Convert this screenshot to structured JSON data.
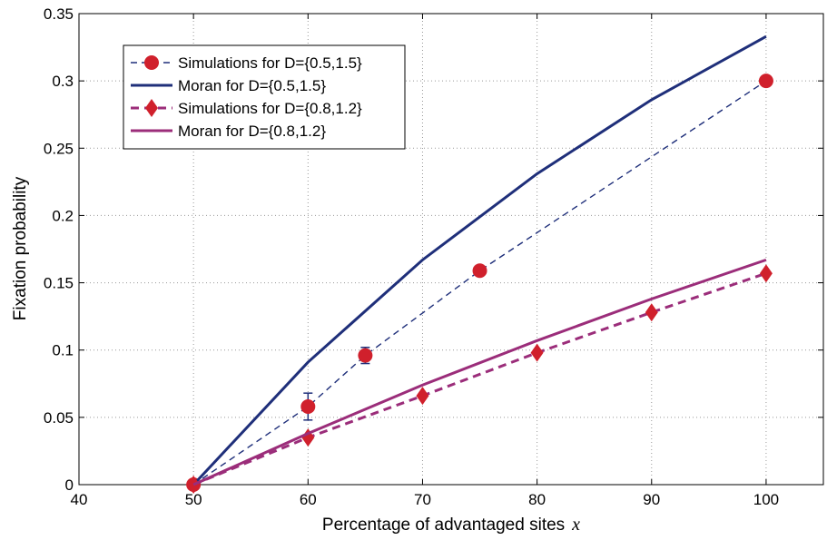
{
  "chart_data": {
    "type": "line",
    "xlabel": "Percentage of advantaged sites",
    "xlabel_var": "x",
    "ylabel": "Fixation probability",
    "xlim": [
      40,
      105
    ],
    "ylim": [
      0,
      0.35
    ],
    "xticks": [
      40,
      50,
      60,
      70,
      80,
      90,
      100
    ],
    "yticks": [
      0,
      0.05,
      0.1,
      0.15,
      0.2,
      0.25,
      0.3,
      0.35
    ],
    "grid": true,
    "legend_position": "top-left",
    "series": [
      {
        "name": "Simulations for D={0.5,1.5}",
        "style": "dashed-thin-circle",
        "line_color": "#1f2f7a",
        "marker_color": "#d0202c",
        "x": [
          50,
          60,
          65,
          75,
          100
        ],
        "y": [
          0.0,
          0.058,
          0.096,
          0.159,
          0.3
        ],
        "err": [
          0.0,
          0.01,
          0.006,
          0.0,
          0.0
        ]
      },
      {
        "name": "Moran for D={0.5,1.5}",
        "style": "solid",
        "line_color": "#1f2f7a",
        "x": [
          50,
          60,
          70,
          80,
          90,
          100
        ],
        "y": [
          0.0,
          0.091,
          0.167,
          0.231,
          0.286,
          0.333
        ]
      },
      {
        "name": "Simulations for D={0.8,1.2}",
        "style": "dashed-thick-diamond",
        "line_color": "#9b2d7a",
        "marker_color": "#d0202c",
        "x": [
          50,
          60,
          70,
          80,
          90,
          100
        ],
        "y": [
          0.0,
          0.035,
          0.066,
          0.098,
          0.128,
          0.157
        ],
        "err": [
          0.0,
          0.0,
          0.0,
          0.0,
          0.0,
          0.0
        ]
      },
      {
        "name": "Moran for D={0.8,1.2}",
        "style": "solid",
        "line_color": "#9b2d7a",
        "x": [
          50,
          60,
          70,
          80,
          90,
          100
        ],
        "y": [
          0.0,
          0.038,
          0.074,
          0.107,
          0.138,
          0.167
        ]
      }
    ]
  }
}
